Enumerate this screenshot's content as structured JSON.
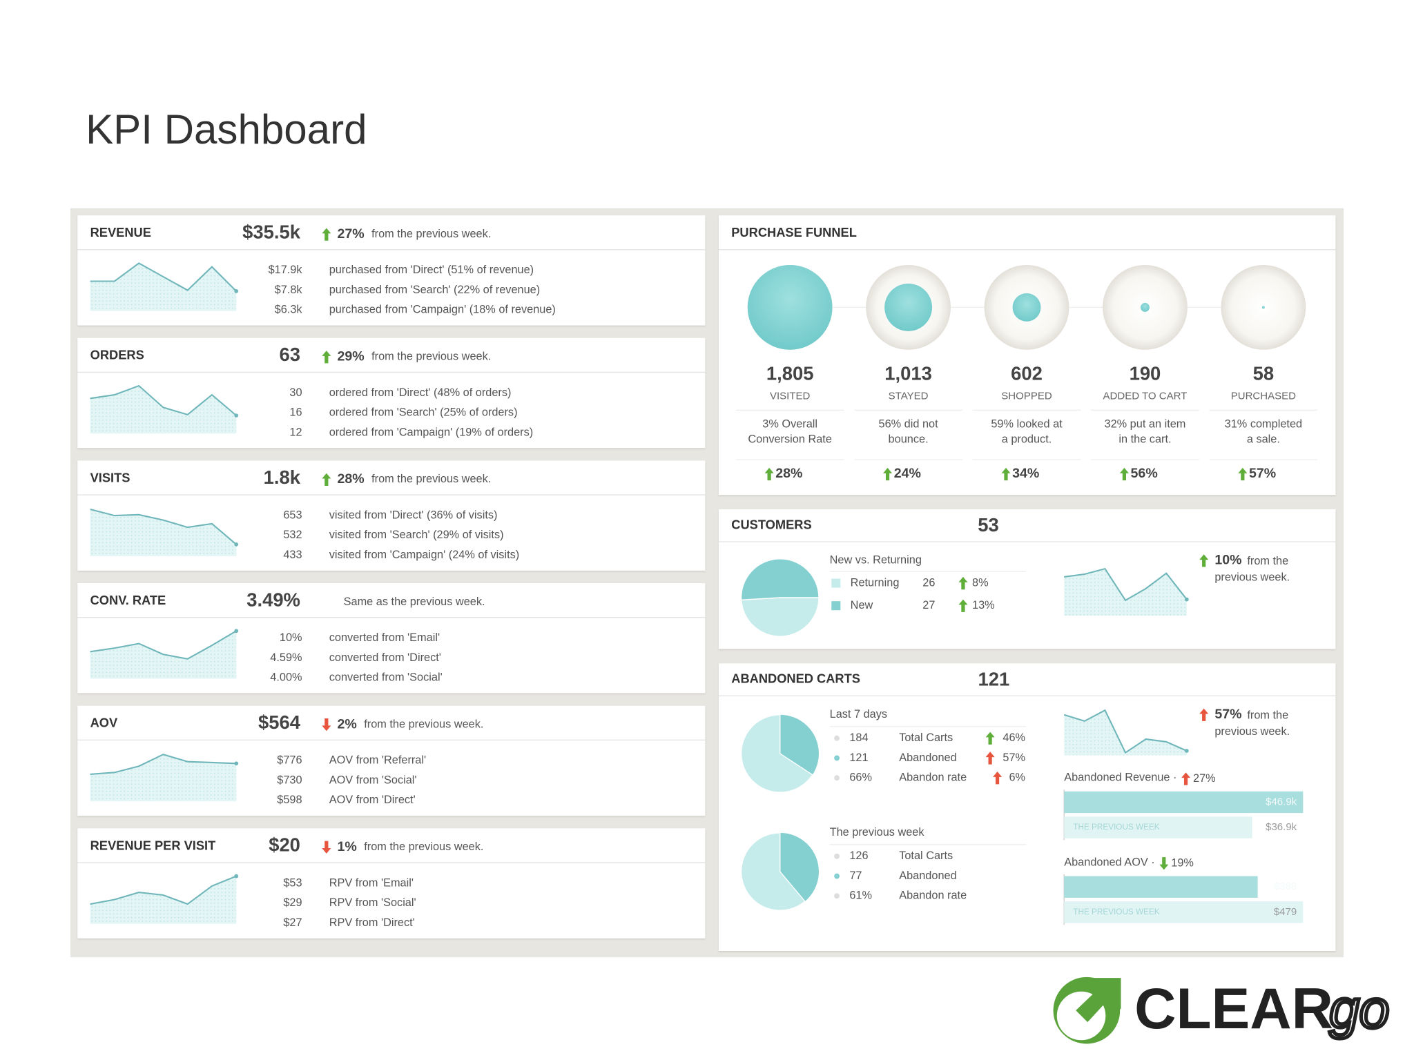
{
  "title": "KPI Dashboard",
  "kpis": [
    {
      "name": "REVENUE",
      "value": "$35.5k",
      "change": "27%",
      "arrow": "up",
      "arrow_color": "#5fae3a",
      "note": "from the previous week.",
      "sparkline": [
        33,
        33,
        53,
        38,
        23,
        49,
        22
      ],
      "breakdown": [
        {
          "value": "$17.9k",
          "label": "purchased from 'Direct' (51% of revenue)"
        },
        {
          "value": "$7.8k",
          "label": "purchased from 'Search' (22% of revenue)"
        },
        {
          "value": "$6.3k",
          "label": "purchased from 'Campaign' (18% of revenue)"
        }
      ]
    },
    {
      "name": "ORDERS",
      "value": "63",
      "change": "29%",
      "arrow": "up",
      "arrow_color": "#5fae3a",
      "note": "from the previous week.",
      "sparkline": [
        39,
        43,
        53,
        29,
        21,
        43,
        20
      ],
      "breakdown": [
        {
          "value": "30",
          "label": "ordered from 'Direct' (48% of orders)"
        },
        {
          "value": "16",
          "label": "ordered from 'Search' (25% of orders)"
        },
        {
          "value": "12",
          "label": "ordered from 'Campaign' (19% of orders)"
        }
      ]
    },
    {
      "name": "VISITS",
      "value": "1.8k",
      "change": "28%",
      "arrow": "up",
      "arrow_color": "#5fae3a",
      "note": "from the previous week.",
      "sparkline": [
        52,
        45,
        46,
        40,
        32,
        36,
        13
      ],
      "breakdown": [
        {
          "value": "653",
          "label": "visited from 'Direct' (36% of visits)"
        },
        {
          "value": "532",
          "label": "visited from 'Search' (29% of visits)"
        },
        {
          "value": "433",
          "label": "visited from 'Campaign' (24% of visits)"
        }
      ]
    },
    {
      "name": "CONV. RATE",
      "value": "3.49%",
      "note": "Same as the previous week.",
      "sparkline": [
        30,
        34,
        39,
        27,
        22,
        37,
        53
      ],
      "breakdown": [
        {
          "value": "10%",
          "label": "converted from 'Email'"
        },
        {
          "value": "4.59%",
          "label": "converted from 'Direct'"
        },
        {
          "value": "4.00%",
          "label": "converted from 'Social'"
        }
      ]
    },
    {
      "name": "AOV",
      "value": "$564",
      "change": "2%",
      "arrow": "down",
      "arrow_color": "#e8553e",
      "note": "from the previous week.",
      "sparkline": [
        30,
        32,
        39,
        52,
        44,
        43,
        42
      ],
      "breakdown": [
        {
          "value": "$776",
          "label": "AOV from 'Referral'"
        },
        {
          "value": "$730",
          "label": "AOV from 'Social'"
        },
        {
          "value": "$598",
          "label": "AOV from 'Direct'"
        }
      ]
    },
    {
      "name": "REVENUE PER VISIT",
      "value": "$20",
      "change": "1%",
      "arrow": "down",
      "arrow_color": "#e8553e",
      "note": "from the previous week.",
      "sparkline": [
        22,
        27,
        35,
        32,
        22,
        42,
        53
      ],
      "breakdown": [
        {
          "value": "$53",
          "label": "RPV from 'Email'"
        },
        {
          "value": "$29",
          "label": "RPV from 'Social'"
        },
        {
          "value": "$27",
          "label": "RPV from 'Direct'"
        }
      ]
    }
  ],
  "funnel": {
    "title": "PURCHASE FUNNEL",
    "arrow_color": "#5fae3a",
    "stages": [
      {
        "count": {
          "value": 1805,
          "label": "1,805"
        },
        "label": "VISITED",
        "note": [
          "3% Overall",
          "Conversion Rate"
        ],
        "change": "28%"
      },
      {
        "count": {
          "value": 1013,
          "label": "1,013"
        },
        "label": "STAYED",
        "note": [
          "56% did not",
          "bounce."
        ],
        "change": "24%"
      },
      {
        "count": {
          "value": 602,
          "label": "602"
        },
        "label": "SHOPPED",
        "note": [
          "59% looked at",
          "a product."
        ],
        "change": "34%"
      },
      {
        "count": {
          "value": 190,
          "label": "190"
        },
        "label": "ADDED TO CART",
        "note": [
          "32% put an item",
          "in the cart."
        ],
        "change": "56%"
      },
      {
        "count": {
          "value": 58,
          "label": "58"
        },
        "label": "PURCHASED",
        "note": [
          "31% completed",
          "a sale."
        ],
        "change": "57%"
      }
    ]
  },
  "customers": {
    "title": "CUSTOMERS",
    "total": 53,
    "subtitle": "New vs. Returning",
    "segments": [
      {
        "name": "Returning",
        "count": 26,
        "change": "8%",
        "color": "#c6ebeb"
      },
      {
        "name": "New",
        "count": 27,
        "change": "13%",
        "color": "#84d0d0"
      }
    ],
    "arrow_color": "#5fae3a",
    "sparkline": [
      43,
      46,
      52,
      17,
      30,
      47,
      18
    ],
    "change": "10%",
    "note": [
      "from the",
      "previous week."
    ]
  },
  "abandoned": {
    "title": "ABANDONED CARTS",
    "total": 121,
    "periods": [
      {
        "label": "Last 7 days",
        "rows": [
          {
            "value": 184,
            "label": "Total Carts",
            "change": "46%",
            "arrow_color": "#5fae3a"
          },
          {
            "value": 121,
            "label": "Abandoned",
            "change": "57%",
            "arrow_color": "#e8553e"
          },
          {
            "value": "66%",
            "label": "Abandon rate",
            "change": "6%",
            "arrow_color": "#e8553e"
          }
        ]
      },
      {
        "label": "The previous week",
        "rows": [
          {
            "value": 126,
            "label": "Total Carts"
          },
          {
            "value": 77,
            "label": "Abandoned"
          },
          {
            "value": "61%",
            "label": "Abandon rate"
          }
        ]
      }
    ],
    "sparkline": [
      45,
      38,
      50,
      3,
      18,
      15,
      5
    ],
    "change": "57%",
    "arrow_color": "#e8553e",
    "note": [
      "from the",
      "previous week."
    ],
    "metrics": [
      {
        "label": "Abandoned Revenue ·",
        "change": "27%",
        "arrow": "up",
        "arrow_color": "#e8553e",
        "bars": [
          {
            "value": 46900,
            "label": "$46.9k"
          },
          {
            "name": "THE PREVIOUS WEEK",
            "value": 36900,
            "label": "$36.9k"
          }
        ]
      },
      {
        "label": "Abandoned AOV ·",
        "change": "19%",
        "arrow": "down",
        "arrow_color": "#5fae3a",
        "bars": [
          {
            "value": 388,
            "label": "$388"
          },
          {
            "name": "THE PREVIOUS WEEK",
            "value": 479,
            "label": "$479"
          }
        ]
      }
    ]
  },
  "logo": {
    "text": "CLEAR",
    "tail": "go"
  }
}
